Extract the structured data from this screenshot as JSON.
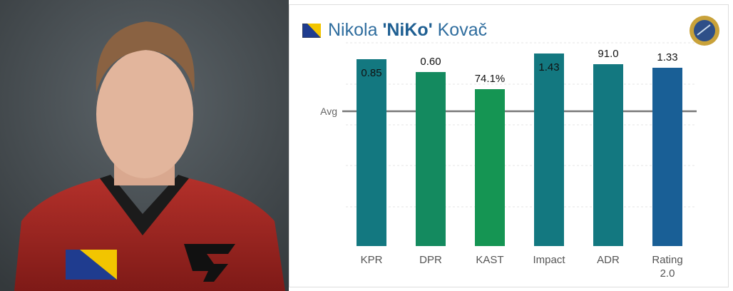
{
  "header": {
    "first_name": "Nikola",
    "nickname": "'NiKo'",
    "last_name": "Kovač"
  },
  "chart_data": {
    "type": "bar",
    "categories": [
      "KPR",
      "DPR",
      "KAST",
      "Impact",
      "ADR",
      "Rating 2.0"
    ],
    "values": [
      0.85,
      0.6,
      74.1,
      1.43,
      91.0,
      1.33
    ],
    "value_labels": [
      "0.85",
      "0.60",
      "74.1%",
      "1.43",
      "91.0",
      "1.33"
    ],
    "colors": [
      "#137880",
      "#148a5f",
      "#159553",
      "#137880",
      "#137880",
      "#195f96"
    ],
    "reference_label": "Avg"
  }
}
